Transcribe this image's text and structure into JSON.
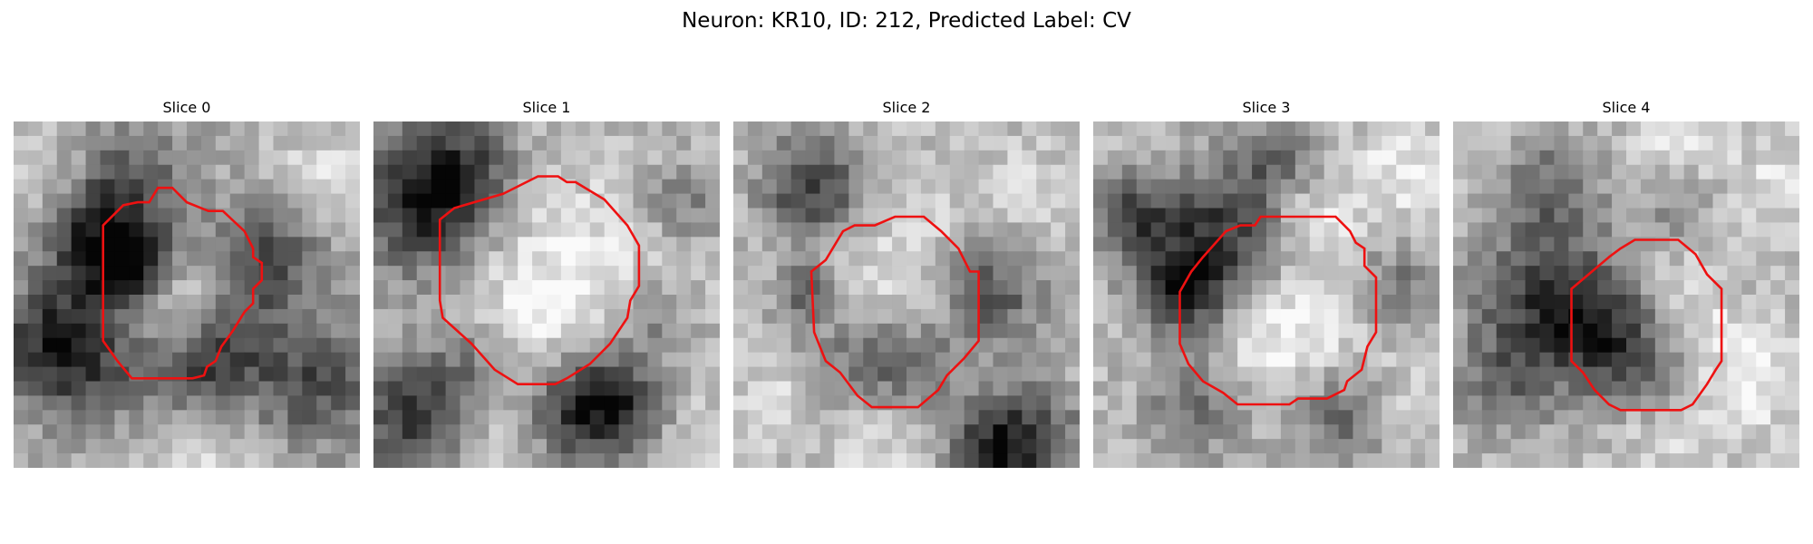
{
  "figure": {
    "title": "Neuron: KR10, ID: 212, Predicted Label: CV"
  },
  "contour_color": "#ee1111",
  "slices": [
    {
      "title": "Slice 0"
    },
    {
      "title": "Slice 1"
    },
    {
      "title": "Slice 2"
    },
    {
      "title": "Slice 3"
    },
    {
      "title": "Slice 4"
    }
  ]
}
